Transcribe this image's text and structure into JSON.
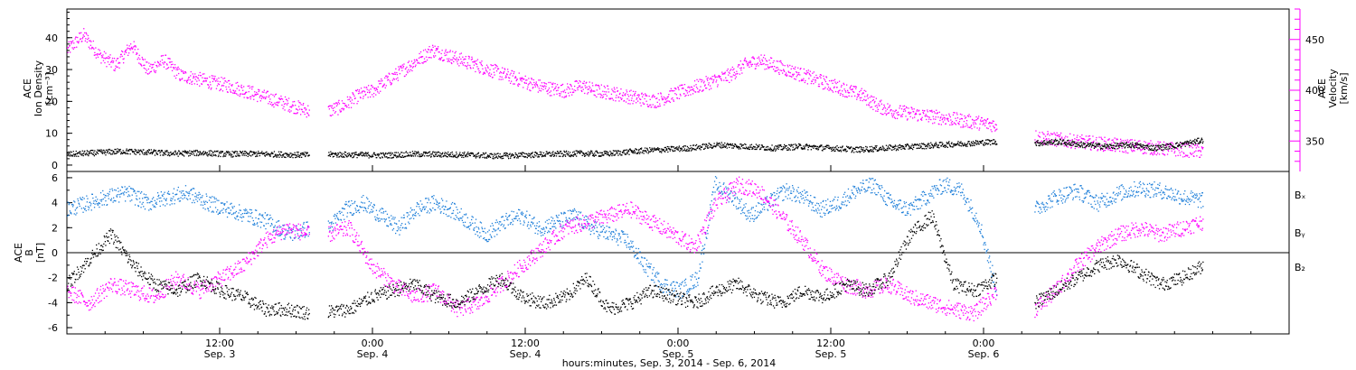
{
  "chart_data": [
    {
      "type": "scatter",
      "panel": "top",
      "left_axis": {
        "label_lines": [
          "ACE",
          "Ion Density",
          "[cm⁻³]"
        ],
        "ticks": [
          0,
          10,
          20,
          30,
          40
        ],
        "ylim": [
          -2,
          49
        ],
        "color": "#000000"
      },
      "right_axis": {
        "label_lines": [
          "ACE",
          "Velocity",
          "[km/s]"
        ],
        "ticks": [
          350,
          400,
          450
        ],
        "ylim": [
          320,
          480
        ],
        "color": "#ff00ff"
      },
      "series": [
        {
          "axis": "left",
          "color": "#000000",
          "segments": [
            {
              "x_start": 0.0,
              "x_end": 19.0,
              "values": [
                3.5,
                4.0,
                4.5,
                4.2,
                3.8,
                4.0,
                3.6,
                3.7,
                3.5,
                3.3
              ]
            },
            {
              "x_start": 20.5,
              "x_end": 73.0,
              "values": [
                3.5,
                3.4,
                3.2,
                3.6,
                3.5,
                3.4,
                3.0,
                3.3,
                3.6,
                3.8,
                3.7,
                4.5,
                5.0,
                5.5,
                6.5,
                6.0,
                5.5,
                6.0,
                5.5,
                5.0,
                5.5,
                6.0,
                6.5,
                7.0,
                7.5
              ]
            },
            {
              "x_start": 76.0,
              "x_end": 89.2,
              "values": [
                7.0,
                7.5,
                6.5,
                6.0,
                6.5,
                5.5,
                6.5,
                8.0
              ]
            }
          ]
        },
        {
          "axis": "right",
          "color": "#ff00ff",
          "segments": [
            {
              "x_start": 0.0,
              "x_end": 19.0,
              "values": [
                440,
                455,
                435,
                425,
                445,
                420,
                430,
                415,
                412,
                408,
                405,
                400,
                395,
                390,
                385,
                380
              ]
            },
            {
              "x_start": 20.5,
              "x_end": 73.0,
              "values": [
                380,
                385,
                395,
                400,
                410,
                420,
                430,
                440,
                435,
                430,
                425,
                420,
                415,
                410,
                405,
                402,
                400,
                405,
                400,
                398,
                395,
                392,
                390,
                395,
                400,
                405,
                410,
                415,
                425,
                430,
                425,
                420,
                415,
                410,
                405,
                400,
                395,
                385,
                380,
                378,
                376,
                374,
                372,
                370,
                368,
                366
              ]
            },
            {
              "x_start": 76.0,
              "x_end": 89.2,
              "values": [
                355,
                352,
                350,
                348,
                346,
                345,
                343,
                342,
                340
              ]
            }
          ]
        }
      ]
    },
    {
      "type": "scatter",
      "panel": "bottom",
      "left_axis": {
        "label_lines": [
          "ACE",
          "B",
          "[nT]"
        ],
        "ticks": [
          -6,
          -4,
          -2,
          0,
          2,
          4,
          6
        ],
        "ylim": [
          -6.5,
          6.5
        ],
        "color": "#000000"
      },
      "zero_line": true,
      "legend_position": "right",
      "series": [
        {
          "name": "Bₓ",
          "color": "#000000",
          "segments": [
            {
              "x_start": 0.0,
              "x_end": 19.0,
              "values": [
                -2.5,
                -0.5,
                1.5,
                -1.0,
                -2.5,
                -3.0,
                -2.0,
                -3.0,
                -3.5,
                -4.5,
                -4.5,
                -4.8
              ]
            },
            {
              "x_start": 20.5,
              "x_end": 73.0,
              "values": [
                -4.7,
                -4.5,
                -3.5,
                -3.0,
                -2.5,
                -3.5,
                -4.0,
                -3.0,
                -2.0,
                -3.5,
                -4.0,
                -3.5,
                -2.0,
                -4.5,
                -4.0,
                -3.0,
                -3.5,
                -4.0,
                -3.0,
                -2.5,
                -3.5,
                -4.0,
                -3.0,
                -3.5,
                -2.5,
                -3.0,
                -2.0,
                1.5,
                3.0,
                -2.5,
                -3.0,
                -2.0
              ]
            },
            {
              "x_start": 76.0,
              "x_end": 89.2,
              "values": [
                -4.0,
                -3.0,
                -2.0,
                -1.0,
                -0.5,
                -1.5,
                -2.5,
                -2.0,
                -1.0
              ]
            }
          ]
        },
        {
          "name": "Bᵧ",
          "color": "#1e7fd9",
          "segments": [
            {
              "x_start": 0.0,
              "x_end": 19.0,
              "values": [
                3.5,
                4.0,
                4.5,
                4.8,
                4.0,
                4.5,
                4.8,
                4.0,
                3.5,
                3.0,
                2.5,
                1.5,
                2.0
              ]
            },
            {
              "x_start": 20.5,
              "x_end": 73.0,
              "values": [
                2.0,
                3.5,
                4.0,
                3.0,
                2.0,
                3.5,
                4.0,
                3.5,
                2.5,
                1.5,
                2.5,
                3.0,
                2.0,
                2.5,
                3.0,
                2.0,
                1.5,
                1.0,
                -1.0,
                -2.5,
                -3.0,
                -2.0,
                5.5,
                4.5,
                3.0,
                4.0,
                5.0,
                4.5,
                3.5,
                4.0,
                5.0,
                5.5,
                4.0,
                3.5,
                4.5,
                5.5,
                5.0,
                2.5,
                -3.0
              ]
            },
            {
              "x_start": 76.0,
              "x_end": 89.2,
              "values": [
                3.5,
                4.5,
                5.0,
                4.0,
                4.8,
                5.2,
                5.0,
                4.5,
                4.2
              ]
            }
          ]
        },
        {
          "name": "B₂",
          "color": "#ff00ff",
          "segments": [
            {
              "x_start": 0.0,
              "x_end": 19.0,
              "values": [
                -3.0,
                -4.0,
                -2.5,
                -3.0,
                -3.5,
                -2.0,
                -3.0,
                -2.0,
                -1.0,
                1.0,
                2.0,
                1.5
              ]
            },
            {
              "x_start": 20.5,
              "x_end": 73.0,
              "values": [
                1.5,
                2.0,
                -1.0,
                -2.5,
                -3.5,
                -3.0,
                -4.5,
                -4.0,
                -2.5,
                -1.0,
                0.5,
                2.0,
                2.5,
                3.0,
                3.5,
                2.5,
                1.5,
                0.5,
                4.0,
                5.5,
                5.0,
                3.0,
                1.0,
                -1.5,
                -2.5,
                -3.0,
                -2.5,
                -3.5,
                -4.0,
                -4.5,
                -4.8,
                -3.0
              ]
            },
            {
              "x_start": 76.0,
              "x_end": 89.2,
              "values": [
                -4.5,
                -3.0,
                -1.0,
                0.5,
                1.5,
                2.0,
                1.5,
                2.0,
                2.5
              ]
            }
          ]
        }
      ]
    }
  ],
  "x_axis": {
    "xlim": [
      0,
      96
    ],
    "ticks": [
      {
        "x": 12,
        "time": "12:00",
        "date": "Sep. 3"
      },
      {
        "x": 24,
        "time": "0:00",
        "date": "Sep. 4"
      },
      {
        "x": 36,
        "time": "12:00",
        "date": "Sep. 4"
      },
      {
        "x": 48,
        "time": "0:00",
        "date": "Sep. 5"
      },
      {
        "x": 60,
        "time": "12:00",
        "date": "Sep. 5"
      },
      {
        "x": 72,
        "time": "0:00",
        "date": "Sep. 6"
      }
    ],
    "label": "hours:minutes, Sep.  3, 2014 - Sep.  6, 2014"
  }
}
